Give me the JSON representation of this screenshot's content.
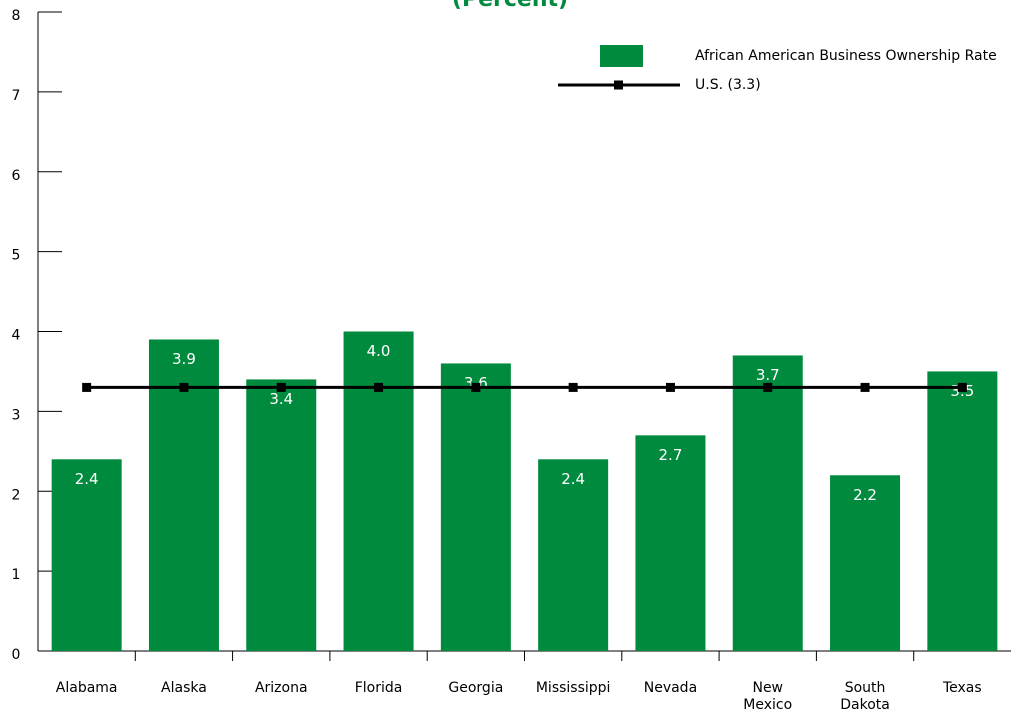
{
  "chart_data": {
    "type": "bar",
    "subtitle": "(Percent)",
    "categories": [
      "Alabama",
      "Alaska",
      "Arizona",
      "Florida",
      "Georgia",
      "Mississippi",
      "Nevada",
      "New Mexico",
      "South Dakota",
      "Texas"
    ],
    "series": [
      {
        "name": "African American Business Ownership Rate",
        "type": "bar",
        "color": "#008a3e",
        "values": [
          2.4,
          3.9,
          3.4,
          4.0,
          3.6,
          2.4,
          2.7,
          3.7,
          2.2,
          3.5
        ],
        "value_labels": [
          "2.4",
          "3.9",
          "3.4",
          "4.0",
          "3.6",
          "2.4",
          "2.7",
          "3.7",
          "2.2",
          "3.5"
        ]
      },
      {
        "name": "U.S. (3.3)",
        "type": "line",
        "color": "#000000",
        "values": [
          3.3,
          3.3,
          3.3,
          3.3,
          3.3,
          3.3,
          3.3,
          3.3,
          3.3,
          3.3
        ]
      }
    ],
    "ylim": [
      0,
      8
    ],
    "yticks": [
      0,
      1,
      2,
      3,
      4,
      5,
      6,
      7,
      8
    ],
    "grid": false,
    "legend": "top-right"
  }
}
